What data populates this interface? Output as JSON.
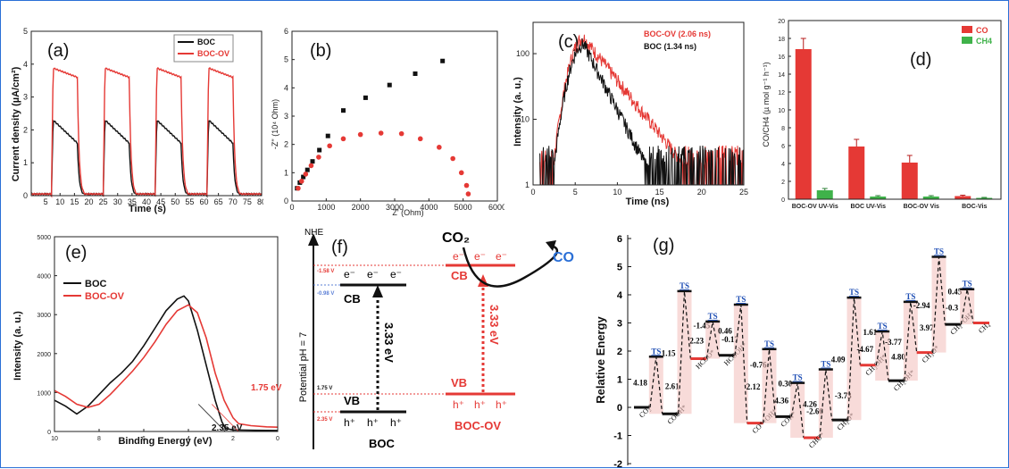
{
  "chart_data": [
    {
      "panel": "(a)",
      "type": "line",
      "xlabel": "Time (s)",
      "ylabel": "Current density (µA/cm²)",
      "xlim": [
        0,
        80
      ],
      "ylim": [
        0,
        5
      ],
      "xticks": [
        5,
        10,
        15,
        20,
        25,
        30,
        35,
        40,
        45,
        50,
        55,
        60,
        65,
        70,
        75,
        80
      ],
      "yticks": [
        0,
        1,
        2,
        3,
        4,
        5
      ],
      "cycles": [
        7,
        25,
        43,
        61
      ],
      "on_duration": 9,
      "series": [
        {
          "name": "BOC",
          "color": "#111111",
          "on_peak": 2.35,
          "on_end": 1.6,
          "baseline": 0.05
        },
        {
          "name": "BOC-OV",
          "color": "#e53935",
          "on_peak": 3.9,
          "on_end": 3.6,
          "baseline": 0.05
        }
      ]
    },
    {
      "panel": "(b)",
      "type": "scatter",
      "xlabel": "Z' (Ohm)",
      "ylabel": "-Z'' (10⁴ Ohm)",
      "xlim": [
        0,
        6000
      ],
      "ylim": [
        0,
        6
      ],
      "xticks": [
        0,
        1000,
        2000,
        3000,
        4000,
        5000,
        6000
      ],
      "yticks": [
        0,
        1,
        2,
        3,
        4,
        5,
        6
      ],
      "series": [
        {
          "name": "",
          "color": "#111111",
          "marker": "square",
          "points": [
            [
              150,
              0.45
            ],
            [
              230,
              0.65
            ],
            [
              330,
              0.85
            ],
            [
              450,
              1.1
            ],
            [
              600,
              1.4
            ],
            [
              800,
              1.8
            ],
            [
              1050,
              2.3
            ],
            [
              1500,
              3.2
            ],
            [
              2150,
              3.65
            ],
            [
              2850,
              4.1
            ],
            [
              3600,
              4.5
            ],
            [
              4400,
              4.95
            ]
          ]
        },
        {
          "name": "",
          "color": "#e53935",
          "marker": "circle",
          "points": [
            [
              180,
              0.45
            ],
            [
              280,
              0.7
            ],
            [
              400,
              0.95
            ],
            [
              560,
              1.25
            ],
            [
              780,
              1.55
            ],
            [
              1100,
              1.95
            ],
            [
              1500,
              2.2
            ],
            [
              2000,
              2.35
            ],
            [
              2600,
              2.4
            ],
            [
              3200,
              2.38
            ],
            [
              3750,
              2.2
            ],
            [
              4300,
              1.9
            ],
            [
              4700,
              1.5
            ],
            [
              4950,
              1.0
            ],
            [
              5100,
              0.55
            ],
            [
              5150,
              0.25
            ]
          ]
        }
      ]
    },
    {
      "panel": "(c)",
      "type": "line",
      "xlabel": "Time (ns)",
      "ylabel": "Intensity (a. u.)",
      "xlim": [
        0,
        25
      ],
      "ylim": [
        1,
        300
      ],
      "yscale": "log",
      "xticks": [
        0,
        5,
        10,
        15,
        20,
        25
      ],
      "yticks": [
        1,
        10,
        100
      ],
      "series": [
        {
          "name": "BOC-OV",
          "label": "BOC-OV  (2.06 ns)",
          "color": "#e53935",
          "peak": 175,
          "tau": 2.06
        },
        {
          "name": "BOC",
          "label": "BOC  (1.34 ns)",
          "color": "#111111",
          "peak": 140,
          "tau": 1.34
        }
      ]
    },
    {
      "panel": "(d)",
      "type": "bar",
      "ylabel": "CO/CH4 (µ mol g⁻¹ h⁻¹)",
      "ylim": [
        0,
        20
      ],
      "yticks": [
        0,
        2,
        4,
        6,
        8,
        10,
        12,
        14,
        16,
        18,
        20
      ],
      "legend_pos": "top-right",
      "categories": [
        "BOC-OV UV-Vis",
        "BOC UV-Vis",
        "BOC-OV Vis",
        "BOC-Vis"
      ],
      "series": [
        {
          "name": "CO",
          "color": "#e53935",
          "values": [
            16.8,
            5.9,
            4.1,
            0.35
          ],
          "errors": [
            1.2,
            0.8,
            0.8,
            0.1
          ]
        },
        {
          "name": "CH4",
          "color": "#3fb24a",
          "values": [
            1.0,
            0.3,
            0.3,
            0.15
          ],
          "errors": [
            0.2,
            0.1,
            0.1,
            0.05
          ]
        }
      ]
    },
    {
      "panel": "(e)",
      "type": "line",
      "xlabel": "Binding Energy (eV)",
      "ylabel": "Intensity (a. u.)",
      "xlim": [
        10,
        0
      ],
      "ylim": [
        0,
        5000
      ],
      "xticks": [
        10,
        8,
        6,
        4,
        2,
        0
      ],
      "yticks": [
        0,
        1000,
        2000,
        3000,
        4000,
        5000
      ],
      "series": [
        {
          "name": "BOC",
          "color": "#111111",
          "edge": 2.35
        },
        {
          "name": "BOC-OV",
          "color": "#e53935",
          "edge": 1.75
        }
      ],
      "annotations": [
        "2.35 eV",
        "1.75 eV"
      ]
    },
    {
      "panel": "(f)",
      "type": "diagram",
      "axis_title": "NHE",
      "ylabel": "Potential pH = 7",
      "levels": {
        "ov_cb": "-1.58 V",
        "boc_cb": "-0.98 V",
        "ov_vb": "1.75 V",
        "boc_vb": "2.35 V"
      },
      "boc": {
        "name": "BOC",
        "cb": "CB",
        "vb": "VB",
        "gap": "3.33 eV"
      },
      "ov": {
        "name": "BOC-OV",
        "cb": "CB",
        "vb": "VB",
        "gap": "3.33 eV"
      },
      "electron": "e⁻",
      "hole": "h⁺",
      "reactant": "CO₂",
      "product": "CO"
    },
    {
      "panel": "(g)",
      "type": "energy_profile",
      "ylabel": "Relative Energy",
      "ylim": [
        -2,
        6
      ],
      "yticks": [
        -2,
        -1,
        0,
        1,
        2,
        3,
        4,
        5,
        6
      ],
      "states": [
        {
          "label": "CO₂*",
          "e": 0.0
        },
        {
          "label": "COOH*",
          "e": -0.23
        },
        {
          "label": "HCOO*",
          "e": 1.73
        },
        {
          "label": "HCOOH*",
          "e": 1.85
        },
        {
          "label": "CO*+OH*",
          "e": -0.56
        },
        {
          "label": "COH*",
          "e": -0.33
        },
        {
          "label": "CHO*",
          "e": -1.08
        },
        {
          "label": "CH₂O*",
          "e": -0.45
        },
        {
          "label": "CH₂OH*",
          "e": 1.5
        },
        {
          "label": "CH₃OH*",
          "e": 0.95
        },
        {
          "label": "CH₃O*",
          "e": 1.95
        },
        {
          "label": "CH₃+OH*",
          "e": 2.95
        },
        {
          "label": "CH₄",
          "e": 3.0
        }
      ],
      "ts_label": "TS",
      "barriers": [
        "4.18",
        "2.61",
        "1.15",
        "-1.45",
        "2.23",
        "-0.17",
        "0.46",
        "-0.76",
        "2.12",
        "0.30",
        "4.36",
        "-2.66",
        "4.26",
        "-3.73",
        "4.09",
        "1.61",
        "-4.67",
        "4.80",
        "-3.77",
        "3.97",
        "-2.94",
        "0.45",
        "-0.3"
      ]
    }
  ]
}
